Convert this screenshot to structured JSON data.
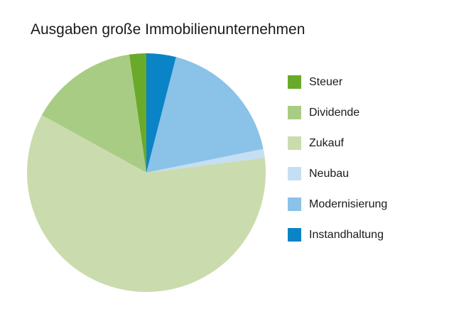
{
  "chart_data": {
    "type": "pie",
    "title": "Ausgaben große Immobilienunternehmen",
    "legend_position": "right",
    "start_angle_deg": 0,
    "direction": "counterclockwise",
    "slices": [
      {
        "label": "Steuer",
        "value": 2.3,
        "color": "#6aaa2a"
      },
      {
        "label": "Dividende",
        "value": 14.7,
        "color": "#a9cc84"
      },
      {
        "label": "Zukauf",
        "value": 60.0,
        "color": "#cadcae"
      },
      {
        "label": "Neubau",
        "value": 1.2,
        "color": "#c4def4"
      },
      {
        "label": "Modernisierung",
        "value": 17.8,
        "color": "#8bc2e7"
      },
      {
        "label": "Instandhaltung",
        "value": 4.0,
        "color": "#0a84c6"
      }
    ]
  }
}
